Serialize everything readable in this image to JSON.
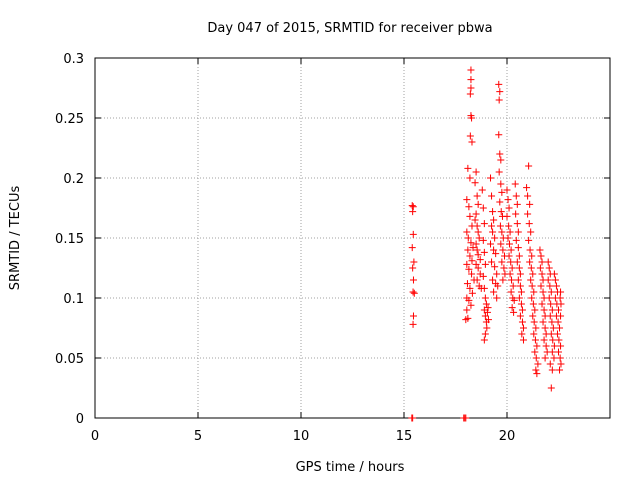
{
  "chart_data": {
    "type": "scatter",
    "title": "Day 047 of 2015, SRMTID for receiver pbwa",
    "xlabel": "GPS time / hours",
    "ylabel": "SRMTID / TECUs",
    "xlim": [
      0,
      25
    ],
    "ylim": [
      0,
      0.3
    ],
    "xticks": [
      0,
      5,
      10,
      15,
      20
    ],
    "xtick_labels": [
      "0",
      "5",
      "10",
      "15",
      "20"
    ],
    "yticks": [
      0,
      0.05,
      0.1,
      0.15,
      0.2,
      0.25,
      0.3
    ],
    "ytick_labels": [
      "0",
      "0.05",
      "0.1",
      "0.15",
      "0.2",
      "0.25",
      "0.3"
    ],
    "grid": true,
    "marker": "+",
    "color": "#ff0000",
    "series": [
      {
        "name": "SRMTID",
        "points": [
          [
            15.4,
            0.177
          ],
          [
            15.45,
            0.176
          ],
          [
            15.42,
            0.172
          ],
          [
            15.45,
            0.153
          ],
          [
            15.4,
            0.142
          ],
          [
            15.48,
            0.13
          ],
          [
            15.42,
            0.125
          ],
          [
            15.46,
            0.115
          ],
          [
            15.44,
            0.105
          ],
          [
            15.5,
            0.104
          ],
          [
            15.46,
            0.085
          ],
          [
            15.44,
            0.078
          ],
          [
            15.42,
            0.0
          ],
          [
            15.38,
            0.0
          ],
          [
            17.9,
            0.0
          ],
          [
            17.95,
            0.0
          ],
          [
            18.0,
            0.0
          ],
          [
            18.25,
            0.29
          ],
          [
            18.25,
            0.282
          ],
          [
            18.25,
            0.275
          ],
          [
            18.22,
            0.27
          ],
          [
            18.25,
            0.252
          ],
          [
            18.28,
            0.25
          ],
          [
            18.22,
            0.235
          ],
          [
            18.3,
            0.23
          ],
          [
            18.1,
            0.208
          ],
          [
            18.2,
            0.2
          ],
          [
            18.05,
            0.182
          ],
          [
            18.15,
            0.176
          ],
          [
            18.2,
            0.168
          ],
          [
            18.3,
            0.16
          ],
          [
            18.05,
            0.155
          ],
          [
            18.12,
            0.15
          ],
          [
            18.25,
            0.146
          ],
          [
            18.35,
            0.142
          ],
          [
            18.1,
            0.14
          ],
          [
            18.2,
            0.135
          ],
          [
            18.3,
            0.131
          ],
          [
            18.05,
            0.128
          ],
          [
            18.15,
            0.124
          ],
          [
            18.28,
            0.12
          ],
          [
            18.4,
            0.115
          ],
          [
            18.08,
            0.112
          ],
          [
            18.2,
            0.108
          ],
          [
            18.32,
            0.104
          ],
          [
            18.05,
            0.1
          ],
          [
            18.15,
            0.098
          ],
          [
            18.25,
            0.094
          ],
          [
            18.05,
            0.09
          ],
          [
            18.1,
            0.083
          ],
          [
            18.0,
            0.082
          ],
          [
            18.5,
            0.205
          ],
          [
            18.45,
            0.196
          ],
          [
            18.55,
            0.185
          ],
          [
            18.6,
            0.178
          ],
          [
            18.5,
            0.17
          ],
          [
            18.45,
            0.165
          ],
          [
            18.55,
            0.16
          ],
          [
            18.6,
            0.155
          ],
          [
            18.65,
            0.15
          ],
          [
            18.5,
            0.145
          ],
          [
            18.55,
            0.14
          ],
          [
            18.6,
            0.136
          ],
          [
            18.7,
            0.132
          ],
          [
            18.5,
            0.128
          ],
          [
            18.6,
            0.125
          ],
          [
            18.7,
            0.12
          ],
          [
            18.55,
            0.115
          ],
          [
            18.65,
            0.11
          ],
          [
            18.75,
            0.108
          ],
          [
            18.8,
            0.19
          ],
          [
            18.85,
            0.175
          ],
          [
            18.9,
            0.162
          ],
          [
            18.85,
            0.148
          ],
          [
            18.9,
            0.138
          ],
          [
            18.95,
            0.128
          ],
          [
            18.85,
            0.118
          ],
          [
            18.9,
            0.108
          ],
          [
            18.95,
            0.1
          ],
          [
            19.0,
            0.095
          ],
          [
            18.9,
            0.09
          ],
          [
            18.95,
            0.085
          ],
          [
            19.0,
            0.08
          ],
          [
            19.02,
            0.075
          ],
          [
            18.95,
            0.07
          ],
          [
            18.9,
            0.065
          ],
          [
            19.05,
            0.088
          ],
          [
            19.08,
            0.092
          ],
          [
            19.1,
            0.082
          ],
          [
            19.2,
            0.2
          ],
          [
            19.25,
            0.185
          ],
          [
            19.3,
            0.172
          ],
          [
            19.35,
            0.165
          ],
          [
            19.25,
            0.16
          ],
          [
            19.3,
            0.155
          ],
          [
            19.4,
            0.15
          ],
          [
            19.2,
            0.145
          ],
          [
            19.35,
            0.14
          ],
          [
            19.45,
            0.137
          ],
          [
            19.25,
            0.13
          ],
          [
            19.4,
            0.126
          ],
          [
            19.5,
            0.12
          ],
          [
            19.3,
            0.115
          ],
          [
            19.45,
            0.112
          ],
          [
            19.55,
            0.11
          ],
          [
            19.35,
            0.105
          ],
          [
            19.5,
            0.1
          ],
          [
            19.6,
            0.278
          ],
          [
            19.65,
            0.272
          ],
          [
            19.62,
            0.265
          ],
          [
            19.6,
            0.236
          ],
          [
            19.65,
            0.22
          ],
          [
            19.7,
            0.215
          ],
          [
            19.62,
            0.205
          ],
          [
            19.7,
            0.195
          ],
          [
            19.75,
            0.188
          ],
          [
            19.65,
            0.18
          ],
          [
            19.72,
            0.172
          ],
          [
            19.78,
            0.168
          ],
          [
            19.68,
            0.16
          ],
          [
            19.75,
            0.155
          ],
          [
            19.82,
            0.15
          ],
          [
            19.7,
            0.145
          ],
          [
            19.8,
            0.14
          ],
          [
            19.88,
            0.135
          ],
          [
            19.75,
            0.13
          ],
          [
            19.85,
            0.125
          ],
          [
            19.9,
            0.12
          ],
          [
            19.8,
            0.115
          ],
          [
            20.0,
            0.19
          ],
          [
            20.05,
            0.182
          ],
          [
            20.1,
            0.175
          ],
          [
            20.0,
            0.168
          ],
          [
            20.08,
            0.16
          ],
          [
            20.15,
            0.155
          ],
          [
            20.05,
            0.15
          ],
          [
            20.12,
            0.145
          ],
          [
            20.2,
            0.14
          ],
          [
            20.1,
            0.135
          ],
          [
            20.18,
            0.13
          ],
          [
            20.25,
            0.125
          ],
          [
            20.15,
            0.12
          ],
          [
            20.22,
            0.115
          ],
          [
            20.3,
            0.11
          ],
          [
            20.2,
            0.105
          ],
          [
            20.28,
            0.1
          ],
          [
            20.35,
            0.098
          ],
          [
            20.25,
            0.092
          ],
          [
            20.32,
            0.088
          ],
          [
            20.4,
            0.195
          ],
          [
            20.45,
            0.185
          ],
          [
            20.5,
            0.178
          ],
          [
            20.42,
            0.17
          ],
          [
            20.5,
            0.162
          ],
          [
            20.55,
            0.155
          ],
          [
            20.45,
            0.148
          ],
          [
            20.55,
            0.142
          ],
          [
            20.6,
            0.135
          ],
          [
            20.5,
            0.13
          ],
          [
            20.6,
            0.125
          ],
          [
            20.65,
            0.12
          ],
          [
            20.55,
            0.115
          ],
          [
            20.65,
            0.11
          ],
          [
            20.7,
            0.105
          ],
          [
            20.6,
            0.1
          ],
          [
            20.7,
            0.095
          ],
          [
            20.75,
            0.09
          ],
          [
            20.65,
            0.085
          ],
          [
            20.75,
            0.08
          ],
          [
            20.8,
            0.075
          ],
          [
            20.72,
            0.07
          ],
          [
            20.8,
            0.065
          ],
          [
            20.95,
            0.192
          ],
          [
            21.0,
            0.185
          ],
          [
            21.05,
            0.21
          ],
          [
            21.1,
            0.178
          ],
          [
            21.0,
            0.17
          ],
          [
            21.08,
            0.162
          ],
          [
            21.15,
            0.155
          ],
          [
            21.05,
            0.148
          ],
          [
            21.12,
            0.14
          ],
          [
            21.2,
            0.135
          ],
          [
            21.1,
            0.13
          ],
          [
            21.18,
            0.125
          ],
          [
            21.25,
            0.12
          ],
          [
            21.15,
            0.115
          ],
          [
            21.22,
            0.11
          ],
          [
            21.3,
            0.105
          ],
          [
            21.2,
            0.1
          ],
          [
            21.28,
            0.095
          ],
          [
            21.35,
            0.09
          ],
          [
            21.25,
            0.085
          ],
          [
            21.32,
            0.08
          ],
          [
            21.4,
            0.075
          ],
          [
            21.3,
            0.07
          ],
          [
            21.38,
            0.065
          ],
          [
            21.45,
            0.06
          ],
          [
            21.35,
            0.055
          ],
          [
            21.42,
            0.05
          ],
          [
            21.5,
            0.045
          ],
          [
            21.4,
            0.04
          ],
          [
            21.45,
            0.037
          ],
          [
            21.6,
            0.14
          ],
          [
            21.65,
            0.135
          ],
          [
            21.7,
            0.13
          ],
          [
            21.62,
            0.125
          ],
          [
            21.7,
            0.12
          ],
          [
            21.75,
            0.115
          ],
          [
            21.65,
            0.11
          ],
          [
            21.75,
            0.105
          ],
          [
            21.8,
            0.1
          ],
          [
            21.7,
            0.095
          ],
          [
            21.8,
            0.09
          ],
          [
            21.85,
            0.085
          ],
          [
            21.75,
            0.08
          ],
          [
            21.85,
            0.075
          ],
          [
            21.9,
            0.07
          ],
          [
            21.8,
            0.065
          ],
          [
            21.9,
            0.06
          ],
          [
            21.95,
            0.055
          ],
          [
            21.85,
            0.05
          ],
          [
            22.0,
            0.13
          ],
          [
            22.05,
            0.125
          ],
          [
            22.1,
            0.12
          ],
          [
            22.0,
            0.115
          ],
          [
            22.08,
            0.11
          ],
          [
            22.15,
            0.105
          ],
          [
            22.05,
            0.1
          ],
          [
            22.12,
            0.095
          ],
          [
            22.2,
            0.09
          ],
          [
            22.1,
            0.085
          ],
          [
            22.18,
            0.08
          ],
          [
            22.25,
            0.075
          ],
          [
            22.15,
            0.07
          ],
          [
            22.22,
            0.065
          ],
          [
            22.3,
            0.06
          ],
          [
            22.2,
            0.055
          ],
          [
            22.28,
            0.05
          ],
          [
            22.1,
            0.045
          ],
          [
            22.2,
            0.04
          ],
          [
            22.15,
            0.025
          ],
          [
            22.3,
            0.12
          ],
          [
            22.35,
            0.115
          ],
          [
            22.4,
            0.11
          ],
          [
            22.45,
            0.105
          ],
          [
            22.35,
            0.1
          ],
          [
            22.42,
            0.095
          ],
          [
            22.5,
            0.09
          ],
          [
            22.4,
            0.085
          ],
          [
            22.48,
            0.08
          ],
          [
            22.55,
            0.075
          ],
          [
            22.45,
            0.07
          ],
          [
            22.52,
            0.065
          ],
          [
            22.6,
            0.06
          ],
          [
            22.5,
            0.055
          ],
          [
            22.58,
            0.05
          ],
          [
            22.62,
            0.045
          ],
          [
            22.55,
            0.04
          ],
          [
            22.6,
            0.085
          ],
          [
            22.62,
            0.095
          ],
          [
            22.58,
            0.1
          ],
          [
            22.6,
            0.105
          ]
        ]
      }
    ]
  }
}
